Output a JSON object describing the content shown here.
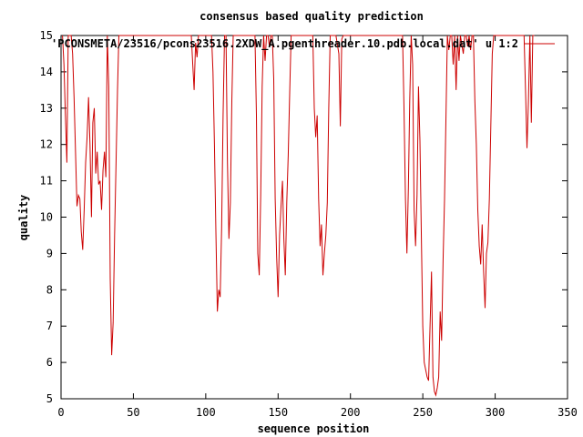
{
  "chart_data": {
    "type": "line",
    "title": "consensus based quality prediction",
    "xlabel": "sequence position",
    "ylabel": "quality",
    "xlim": [
      0,
      350
    ],
    "ylim": [
      5,
      15
    ],
    "x_ticks": [
      0,
      50,
      100,
      150,
      200,
      250,
      300,
      350
    ],
    "y_ticks": [
      5,
      6,
      7,
      8,
      9,
      10,
      11,
      12,
      13,
      14,
      15
    ],
    "grid": false,
    "legend_position": "top-right",
    "series": [
      {
        "name": "'PCONSMETA/23516/pcons23516.2XDW_A.pgenthreader.10.pdb.local.dat' u 1:2",
        "color": "#cc0000",
        "points": [
          [
            1,
            15
          ],
          [
            2,
            14.2
          ],
          [
            3,
            12.8
          ],
          [
            4,
            11.5
          ],
          [
            5,
            15
          ],
          [
            6,
            15
          ],
          [
            7,
            15
          ],
          [
            8,
            14.5
          ],
          [
            9,
            13.3
          ],
          [
            10,
            11.8
          ],
          [
            11,
            10.3
          ],
          [
            12,
            10.6
          ],
          [
            13,
            10.5
          ],
          [
            14,
            9.6
          ],
          [
            15,
            9.1
          ],
          [
            16,
            10.2
          ],
          [
            17,
            11.5
          ],
          [
            18,
            12.2
          ],
          [
            19,
            13.3
          ],
          [
            20,
            12.0
          ],
          [
            21,
            10.0
          ],
          [
            22,
            12.6
          ],
          [
            23,
            13.0
          ],
          [
            24,
            11.2
          ],
          [
            25,
            11.8
          ],
          [
            26,
            10.9
          ],
          [
            27,
            11.0
          ],
          [
            28,
            10.2
          ],
          [
            29,
            11.3
          ],
          [
            30,
            11.8
          ],
          [
            31,
            11.1
          ],
          [
            32,
            15
          ],
          [
            33,
            13.6
          ],
          [
            34,
            8.3
          ],
          [
            35,
            6.2
          ],
          [
            36,
            7.1
          ],
          [
            37,
            9.5
          ],
          [
            38,
            11.5
          ],
          [
            39,
            13.5
          ],
          [
            40,
            15
          ],
          [
            45,
            15
          ],
          [
            55,
            15
          ],
          [
            65,
            15
          ],
          [
            75,
            15
          ],
          [
            85,
            15
          ],
          [
            90,
            15
          ],
          [
            91,
            14.2
          ],
          [
            92,
            13.5
          ],
          [
            93,
            14.8
          ],
          [
            94,
            14.4
          ],
          [
            95,
            15
          ],
          [
            100,
            15
          ],
          [
            104,
            15
          ],
          [
            105,
            14.0
          ],
          [
            106,
            12.0
          ],
          [
            107,
            9.6
          ],
          [
            108,
            7.4
          ],
          [
            109,
            8.0
          ],
          [
            110,
            7.8
          ],
          [
            111,
            9.7
          ],
          [
            112,
            12.8
          ],
          [
            113,
            15
          ],
          [
            114,
            15
          ],
          [
            115,
            11.5
          ],
          [
            116,
            9.4
          ],
          [
            117,
            10.4
          ],
          [
            118,
            13.2
          ],
          [
            119,
            15
          ],
          [
            125,
            15
          ],
          [
            130,
            15
          ],
          [
            134,
            15
          ],
          [
            135,
            12.8
          ],
          [
            136,
            9.0
          ],
          [
            137,
            8.4
          ],
          [
            138,
            10.6
          ],
          [
            139,
            13.6
          ],
          [
            140,
            15
          ],
          [
            141,
            14.3
          ],
          [
            142,
            15
          ],
          [
            143,
            15
          ],
          [
            144,
            14.7
          ],
          [
            145,
            15
          ],
          [
            146,
            15
          ],
          [
            147,
            13.8
          ],
          [
            148,
            10.5
          ],
          [
            149,
            8.9
          ],
          [
            150,
            7.8
          ],
          [
            151,
            9.5
          ],
          [
            152,
            10.3
          ],
          [
            153,
            11.0
          ],
          [
            154,
            9.4
          ],
          [
            155,
            8.4
          ],
          [
            156,
            10.4
          ],
          [
            157,
            11.7
          ],
          [
            158,
            13.4
          ],
          [
            159,
            15
          ],
          [
            165,
            15
          ],
          [
            170,
            15
          ],
          [
            174,
            15
          ],
          [
            175,
            13.0
          ],
          [
            176,
            12.2
          ],
          [
            177,
            12.8
          ],
          [
            178,
            10.5
          ],
          [
            179,
            9.2
          ],
          [
            180,
            9.8
          ],
          [
            181,
            8.4
          ],
          [
            182,
            9.0
          ],
          [
            183,
            9.5
          ],
          [
            184,
            10.4
          ],
          [
            185,
            13.0
          ],
          [
            186,
            15
          ],
          [
            190,
            15
          ],
          [
            192,
            14.5
          ],
          [
            193,
            12.5
          ],
          [
            194,
            14.9
          ],
          [
            195,
            15
          ],
          [
            200,
            15
          ],
          [
            210,
            15
          ],
          [
            220,
            15
          ],
          [
            230,
            15
          ],
          [
            236,
            15
          ],
          [
            237,
            13.0
          ],
          [
            238,
            10.5
          ],
          [
            239,
            9.0
          ],
          [
            240,
            10.8
          ],
          [
            241,
            13.2
          ],
          [
            242,
            15
          ],
          [
            243,
            14.2
          ],
          [
            244,
            10.2
          ],
          [
            245,
            9.2
          ],
          [
            246,
            10.6
          ],
          [
            247,
            13.6
          ],
          [
            248,
            12.1
          ],
          [
            249,
            9.4
          ],
          [
            250,
            7.0
          ],
          [
            251,
            6.0
          ],
          [
            252,
            5.8
          ],
          [
            253,
            5.6
          ],
          [
            254,
            5.5
          ],
          [
            255,
            7.0
          ],
          [
            256,
            8.5
          ],
          [
            257,
            5.6
          ],
          [
            258,
            5.2
          ],
          [
            259,
            5.1
          ],
          [
            260,
            5.3
          ],
          [
            261,
            5.6
          ],
          [
            262,
            7.4
          ],
          [
            263,
            6.6
          ],
          [
            264,
            8.8
          ],
          [
            265,
            10.5
          ],
          [
            266,
            12.8
          ],
          [
            267,
            15
          ],
          [
            268,
            14.6
          ],
          [
            269,
            15
          ],
          [
            270,
            15
          ],
          [
            271,
            14.2
          ],
          [
            272,
            15
          ],
          [
            273,
            13.5
          ],
          [
            274,
            15
          ],
          [
            275,
            14.3
          ],
          [
            276,
            15
          ],
          [
            278,
            14.5
          ],
          [
            279,
            15
          ],
          [
            280,
            15
          ],
          [
            281,
            14.7
          ],
          [
            282,
            15
          ],
          [
            283,
            14.6
          ],
          [
            284,
            15
          ],
          [
            285,
            15
          ],
          [
            286,
            13.2
          ],
          [
            287,
            12.0
          ],
          [
            288,
            10.2
          ],
          [
            289,
            9.2
          ],
          [
            290,
            8.7
          ],
          [
            291,
            9.8
          ],
          [
            292,
            8.5
          ],
          [
            293,
            7.5
          ],
          [
            294,
            9.0
          ],
          [
            295,
            9.3
          ],
          [
            296,
            10.5
          ],
          [
            297,
            12.5
          ],
          [
            298,
            14.5
          ],
          [
            299,
            15
          ],
          [
            305,
            15
          ],
          [
            310,
            15
          ],
          [
            315,
            15
          ],
          [
            320,
            15
          ],
          [
            321,
            13.5
          ],
          [
            322,
            11.9
          ],
          [
            323,
            13.2
          ],
          [
            324,
            15
          ],
          [
            325,
            12.6
          ],
          [
            326,
            15
          ],
          [
            327,
            15
          ]
        ]
      }
    ]
  }
}
